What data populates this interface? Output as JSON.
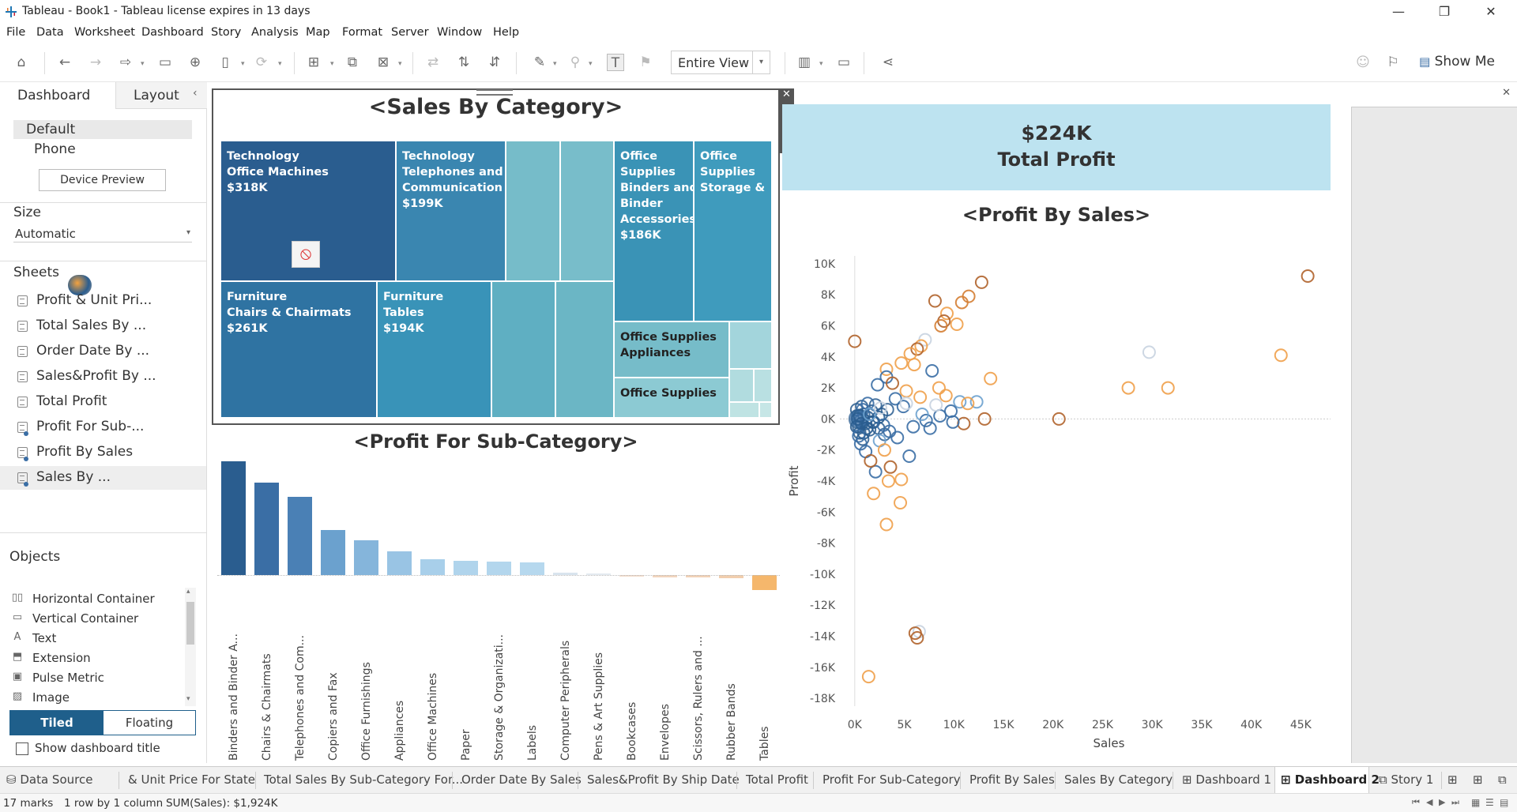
{
  "window": {
    "title": "Tableau - Book1 - Tableau license expires in 13 days"
  },
  "menu": [
    "File",
    "Data",
    "Worksheet",
    "Dashboard",
    "Story",
    "Analysis",
    "Map",
    "Format",
    "Server",
    "Window",
    "Help"
  ],
  "toolbar": {
    "view_mode": "Entire View",
    "show_me": "Show Me"
  },
  "left_pane": {
    "tabs": [
      "Dashboard",
      "Layout"
    ],
    "devices": [
      "Default",
      "Phone"
    ],
    "device_preview": "Device Preview",
    "size_header": "Size",
    "size_value": "Automatic",
    "sheets_header": "Sheets",
    "sheets": [
      "Profit & Unit Pri...",
      "Total Sales By ...",
      "Order Date By ...",
      "Sales&Profit By ...",
      "Total Profit",
      "Profit For Sub-...",
      "Profit By Sales",
      "Sales By ..."
    ],
    "objects_header": "Objects",
    "objects": [
      {
        "icon": "horizontal-container-icon",
        "glyph": "▯▯",
        "label": "Horizontal Container"
      },
      {
        "icon": "vertical-container-icon",
        "glyph": "▭",
        "label": "Vertical Container"
      },
      {
        "icon": "text-icon",
        "glyph": "A",
        "label": "Text"
      },
      {
        "icon": "extension-icon",
        "glyph": "⬒",
        "label": "Extension"
      },
      {
        "icon": "pulse-metric-icon",
        "glyph": "▣",
        "label": "Pulse Metric"
      },
      {
        "icon": "image-icon",
        "glyph": "▨",
        "label": "Image"
      }
    ],
    "tiled": "Tiled",
    "floating": "Floating",
    "show_title": "Show dashboard title"
  },
  "dashboard": {
    "treemap_title": "<Sales By Category>",
    "treemap": [
      {
        "lines": [
          "Technology",
          "Office Machines",
          "$318K"
        ],
        "color": "#2a5d8f"
      },
      {
        "lines": [
          "Technology",
          "Telephones and",
          "Communication",
          "$199K"
        ],
        "color": "#3a86b0"
      },
      {
        "lines": [
          "Furniture",
          "Chairs & Chairmats",
          "$261K"
        ],
        "color": "#2f73a2"
      },
      {
        "lines": [
          "Furniture",
          "Tables",
          "$194K"
        ],
        "color": "#3993b8"
      },
      {
        "lines": [
          "Office",
          "Supplies",
          "Binders and",
          "Binder",
          "Accessories",
          "$186K"
        ],
        "color": "#3a93b6"
      },
      {
        "lines": [
          "Office",
          "Supplies",
          "Storage &"
        ],
        "color": "#3f9bbd"
      },
      {
        "lines": [
          "Office Supplies",
          "Appliances"
        ],
        "color": "#76bcc9"
      },
      {
        "lines": [
          "Office Supplies"
        ],
        "color": "#8ccad3"
      }
    ],
    "kpi_value": "$224K",
    "kpi_label": "Total Profit",
    "scatter_title": "<Profit By Sales>",
    "bar_title": "<Profit For Sub-Category>"
  },
  "chart_data": [
    {
      "type": "bar",
      "title": "<Profit For Sub-Category>",
      "categories": [
        "Binders and Binder A...",
        "Chairs & Chairmats",
        "Telephones and Com...",
        "Copiers and Fax",
        "Office Furnishings",
        "Appliances",
        "Office Machines",
        "Paper",
        "Storage & Organizati...",
        "Labels",
        "Computer Peripherals",
        "Pens & Art Supplies",
        "Bookcases",
        "Envelopes",
        "Scissors, Rulers and ...",
        "Rubber Bands",
        "Tables"
      ],
      "values": [
        38000,
        31000,
        26000,
        15000,
        11500,
        7800,
        5400,
        4700,
        4500,
        4200,
        700,
        100,
        -600,
        -800,
        -900,
        -1100,
        -5000
      ],
      "colors": [
        "#2a5d8f",
        "#3a6ea5",
        "#4a80b5",
        "#6ba1ce",
        "#85b5db",
        "#99c4e4",
        "#a8cfea",
        "#b0d4ec",
        "#b3d6ed",
        "#b6d8ee",
        "#d9e4ee",
        "#e4eaf0",
        "#f3dccb",
        "#f2d5bd",
        "#f2d2b7",
        "#f1ceae",
        "#f5b76c"
      ]
    },
    {
      "type": "scatter",
      "title": "<Profit By Sales>",
      "xlabel": "Sales",
      "ylabel": "Profit",
      "xlim": [
        -1500,
        48000
      ],
      "ylim": [
        -18500,
        10500
      ],
      "xticks": [
        "0K",
        "5K",
        "10K",
        "15K",
        "20K",
        "25K",
        "30K",
        "35K",
        "40K",
        "45K"
      ],
      "yticks": [
        "10K",
        "8K",
        "6K",
        "4K",
        "2K",
        "0K",
        "-2K",
        "-4K",
        "-6K",
        "-8K",
        "-10K",
        "-12K",
        "-14K",
        "-16K",
        "-18K"
      ],
      "points": [
        [
          45700,
          9200,
          "#b0632b"
        ],
        [
          12800,
          8800,
          "#b0632b"
        ],
        [
          11500,
          7900,
          "#d47d32"
        ],
        [
          10800,
          7500,
          "#d47d32"
        ],
        [
          8100,
          7600,
          "#b0632b"
        ],
        [
          9300,
          6800,
          "#f0a04a"
        ],
        [
          10300,
          6100,
          "#f0a04a"
        ],
        [
          9000,
          6300,
          "#b0632b"
        ],
        [
          8700,
          6000,
          "#d47d32"
        ],
        [
          7100,
          5100,
          "#c8d3e0"
        ],
        [
          6700,
          4700,
          "#f0a04a"
        ],
        [
          6300,
          4500,
          "#b0632b"
        ],
        [
          5600,
          4200,
          "#f0a04a"
        ],
        [
          4700,
          3600,
          "#f0a04a"
        ],
        [
          3200,
          3200,
          "#f0a04a"
        ],
        [
          0,
          5000,
          "#b0632b"
        ],
        [
          29700,
          4300,
          "#c8d3e0"
        ],
        [
          43000,
          4100,
          "#f0a04a"
        ],
        [
          27600,
          2000,
          "#f0a04a"
        ],
        [
          31600,
          2000,
          "#f0a04a"
        ],
        [
          13700,
          2600,
          "#f0a04a"
        ],
        [
          20600,
          0,
          "#b0632b"
        ],
        [
          13100,
          0,
          "#b0632b"
        ],
        [
          11000,
          -300,
          "#b0632b"
        ],
        [
          7800,
          3100,
          "#3a6ea5"
        ],
        [
          6000,
          3500,
          "#f0a04a"
        ],
        [
          2300,
          2200,
          "#3a6ea5"
        ],
        [
          3200,
          2700,
          "#3a6ea5"
        ],
        [
          3800,
          2300,
          "#b0632b"
        ],
        [
          8500,
          2000,
          "#f0a04a"
        ],
        [
          9200,
          1500,
          "#f0a04a"
        ],
        [
          10600,
          1100,
          "#6ba1ce"
        ],
        [
          12300,
          1100,
          "#6ba1ce"
        ],
        [
          11400,
          1000,
          "#f0a04a"
        ],
        [
          9700,
          500,
          "#3a6ea5"
        ],
        [
          8600,
          200,
          "#3a6ea5"
        ],
        [
          7200,
          -100,
          "#3a6ea5"
        ],
        [
          5900,
          -500,
          "#3a6ea5"
        ],
        [
          4900,
          800,
          "#3a6ea5"
        ],
        [
          4100,
          1300,
          "#3a6ea5"
        ],
        [
          5200,
          1800,
          "#f0a04a"
        ],
        [
          1300,
          1000,
          "#3a6ea5"
        ],
        [
          800,
          600,
          "#3a6ea5"
        ],
        [
          500,
          200,
          "#2a5d8f"
        ],
        [
          300,
          0,
          "#2a5d8f"
        ],
        [
          700,
          -300,
          "#2a5d8f"
        ],
        [
          1200,
          -600,
          "#2a5d8f"
        ],
        [
          1800,
          -200,
          "#2a5d8f"
        ],
        [
          2400,
          100,
          "#2a5d8f"
        ],
        [
          2900,
          -400,
          "#3a6ea5"
        ],
        [
          3500,
          -800,
          "#3a6ea5"
        ],
        [
          4300,
          -1200,
          "#3a6ea5"
        ],
        [
          5500,
          -2400,
          "#3a6ea5"
        ],
        [
          3600,
          -3100,
          "#b0632b"
        ],
        [
          2100,
          -3400,
          "#3a6ea5"
        ],
        [
          1100,
          -2100,
          "#3a6ea5"
        ],
        [
          600,
          -1600,
          "#3a6ea5"
        ],
        [
          4700,
          -3900,
          "#f0a04a"
        ],
        [
          3400,
          -4000,
          "#f0a04a"
        ],
        [
          1900,
          -4800,
          "#f0a04a"
        ],
        [
          4600,
          -5400,
          "#f0a04a"
        ],
        [
          3200,
          -6800,
          "#f0a04a"
        ],
        [
          6500,
          -13700,
          "#c8d3e0"
        ],
        [
          6300,
          -14100,
          "#b0632b"
        ],
        [
          6100,
          -13800,
          "#b0632b"
        ],
        [
          1400,
          -16600,
          "#f0a04a"
        ],
        [
          200,
          -500,
          "#2a5d8f"
        ],
        [
          900,
          -900,
          "#2a5d8f"
        ],
        [
          1500,
          300,
          "#6ba1ce"
        ],
        [
          2600,
          700,
          "#c8d3e0"
        ],
        [
          6800,
          300,
          "#6ba1ce"
        ],
        [
          7600,
          -600,
          "#3a6ea5"
        ],
        [
          8200,
          900,
          "#c8d3e0"
        ],
        [
          6600,
          1400,
          "#f0a04a"
        ],
        [
          5200,
          1000,
          "#c8d3e0"
        ],
        [
          2500,
          -1400,
          "#6ba1ce"
        ],
        [
          1600,
          -2700,
          "#b0632b"
        ],
        [
          400,
          -1100,
          "#3a6ea5"
        ],
        [
          3000,
          -2000,
          "#f0a04a"
        ],
        [
          9900,
          -200,
          "#3a6ea5"
        ]
      ]
    }
  ],
  "bottom_tabs": [
    {
      "icon": "data-source-icon",
      "label": "Data Source",
      "active": false
    },
    {
      "icon": "",
      "label": "& Unit Price For State",
      "active": false
    },
    {
      "icon": "",
      "label": "Total Sales By Sub-Category For...",
      "active": false
    },
    {
      "icon": "",
      "label": "Order Date By Sales",
      "active": false
    },
    {
      "icon": "",
      "label": "Sales&Profit By Ship Date",
      "active": false
    },
    {
      "icon": "",
      "label": "Total Profit",
      "active": false
    },
    {
      "icon": "",
      "label": "Profit For Sub-Category",
      "active": false
    },
    {
      "icon": "",
      "label": "Profit By Sales",
      "active": false
    },
    {
      "icon": "",
      "label": "Sales By Category",
      "active": false
    },
    {
      "icon": "dashboard-icon",
      "label": "Dashboard 1",
      "active": false
    },
    {
      "icon": "dashboard-icon",
      "label": "Dashboard 2",
      "active": true
    },
    {
      "icon": "story-icon",
      "label": "Story 1",
      "active": false
    }
  ],
  "status": {
    "marks": "17 marks",
    "rows": "1 row by 1 column",
    "sum": "SUM(Sales): $1,924K"
  }
}
